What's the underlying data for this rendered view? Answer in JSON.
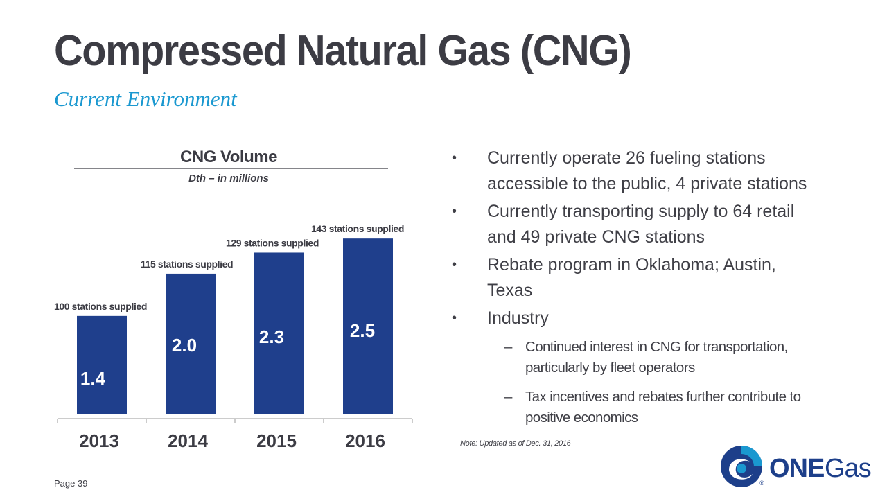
{
  "slide": {
    "title": "Compressed Natural Gas (CNG)",
    "subtitle": "Current Environment",
    "page_label": "Page 39",
    "note": "Note: Updated as of Dec. 31, 2016"
  },
  "bullets": [
    {
      "text": "Currently operate 26 fueling stations accessible to the public, 4 private stations",
      "lines": [
        "Currently operate 26 fueling stations",
        "accessible to the public, 4 private stations"
      ]
    },
    {
      "text": "Currently transporting supply to 64 retail and 49 private CNG stations",
      "lines": [
        "Currently transporting supply to 64 retail",
        "and 49 private CNG stations"
      ]
    },
    {
      "text": "Rebate program in Oklahoma; Austin, Texas",
      "lines": [
        "Rebate program in Oklahoma; Austin,",
        "Texas"
      ]
    },
    {
      "text": "Industry",
      "lines": [
        "Industry"
      ]
    }
  ],
  "sub_bullets": [
    {
      "lines": [
        "Continued interest in CNG for transportation,",
        "particularly by fleet operators"
      ]
    },
    {
      "lines": [
        "Tax incentives and rebates further contribute to",
        "positive economics"
      ]
    }
  ],
  "bullet_symbol": "•",
  "dash_symbol": "–",
  "logo": {
    "text_one": "ONE",
    "text_gas": "Gas",
    "registered": "®",
    "colors": {
      "blue": "#1a98d0",
      "navy": "#1d3f8a",
      "gray": "#3c3c44"
    }
  },
  "chart_data": {
    "type": "bar",
    "title": "CNG Volume",
    "subtitle": "Dth – in millions",
    "categories": [
      "2013",
      "2014",
      "2015",
      "2016"
    ],
    "values": [
      1.4,
      2.0,
      2.3,
      2.5
    ],
    "value_labels": [
      "1.4",
      "2.0",
      "2.3",
      "2.5"
    ],
    "annotations": [
      "100 stations supplied",
      "115 stations supplied",
      "129 stations supplied",
      "143 stations supplied"
    ],
    "bar_color": "#1f3f8c",
    "ylim": [
      0,
      2.6
    ],
    "grid": false,
    "legend": "none"
  }
}
